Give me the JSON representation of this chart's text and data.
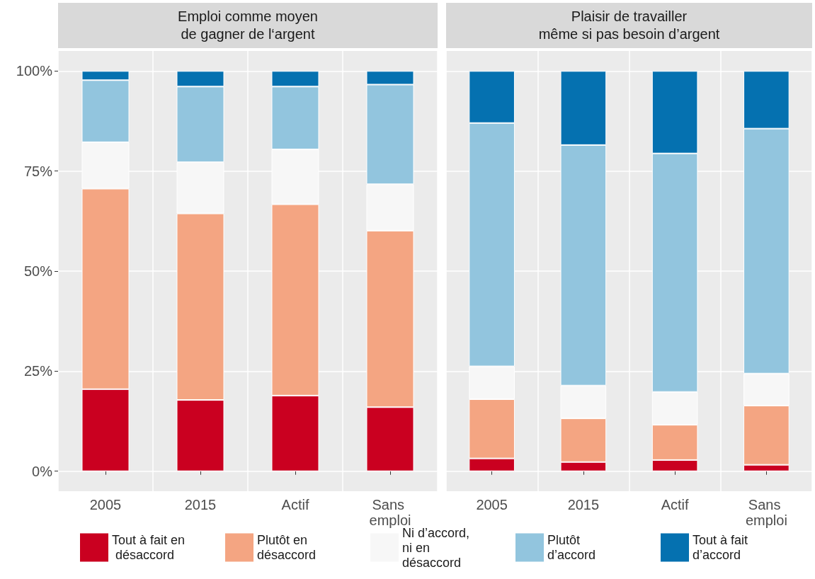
{
  "chart_data": [
    {
      "type": "bar",
      "title": "Emploi comme moyen\nde gagner de l‘argent",
      "stacked": true,
      "categories": [
        "2005",
        "2015",
        "Actif",
        "Sans emploi"
      ],
      "ylim": [
        -5,
        105
      ],
      "yticks": [
        {
          "value": 0,
          "label": "0%"
        },
        {
          "value": 25,
          "label": "25%"
        },
        {
          "value": 50,
          "label": "50%"
        },
        {
          "value": 75,
          "label": "75%"
        },
        {
          "value": 100,
          "label": "100%"
        }
      ],
      "grid": true,
      "legend": "bottom",
      "series": [
        {
          "name": "Tout à fait en désaccord",
          "color": "#ca0020",
          "values": [
            20.5,
            17.8,
            18.9,
            16.0
          ]
        },
        {
          "name": "Plutôt en désaccord",
          "color": "#f4a582",
          "values": [
            50.1,
            46.6,
            47.8,
            44.1
          ]
        },
        {
          "name": "Ni d’accord, ni en désaccord",
          "color": "#f7f7f7",
          "values": [
            11.6,
            12.8,
            13.7,
            11.6
          ]
        },
        {
          "name": "Plutôt d’accord",
          "color": "#92c5de",
          "values": [
            15.5,
            18.9,
            15.7,
            24.9
          ]
        },
        {
          "name": "Tout à fait d’accord",
          "color": "#0571b0",
          "values": [
            2.3,
            3.9,
            3.9,
            3.4
          ]
        }
      ]
    },
    {
      "type": "bar",
      "title": "Plaisir de travailler\nmême si pas besoin d’argent",
      "stacked": true,
      "categories": [
        "2005",
        "2015",
        "Actif",
        "Sans emploi"
      ],
      "ylim": [
        -5,
        105
      ],
      "yticks": [
        {
          "value": 0,
          "label": null
        },
        {
          "value": 25,
          "label": null
        },
        {
          "value": 50,
          "label": null
        },
        {
          "value": 75,
          "label": null
        },
        {
          "value": 100,
          "label": null
        }
      ],
      "grid": true,
      "tick_labels": "x",
      "series": [
        {
          "color": "#ca0020",
          "values": [
            3.2,
            2.3,
            2.8,
            1.6
          ]
        },
        {
          "color": "#f4a582",
          "values": [
            14.8,
            10.9,
            8.8,
            14.8
          ]
        },
        {
          "color": "#f7f7f7",
          "values": [
            8.2,
            8.2,
            8.2,
            8.0
          ]
        },
        {
          "color": "#92c5de",
          "values": [
            60.8,
            60.1,
            59.6,
            61.2
          ]
        },
        {
          "color": "#0571b0",
          "values": [
            13.0,
            18.5,
            20.6,
            14.4
          ]
        }
      ]
    }
  ]
}
